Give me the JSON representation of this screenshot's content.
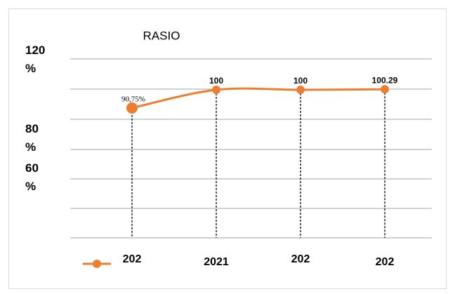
{
  "chart_data": {
    "type": "line",
    "title": "RASIO",
    "categories": [
      "202",
      "2021",
      "202",
      "202"
    ],
    "series": [
      {
        "color": "#ED7D31",
        "values": [
          90.75,
          100,
          100,
          100.29
        ],
        "value_labels": [
          "90,75%",
          "100",
          "100",
          "100.29"
        ]
      }
    ],
    "ylim": [
      25,
      130
    ],
    "yticks": [
      {
        "value": 120,
        "label": "120\n%"
      },
      {
        "value": 80,
        "label": "80\n%"
      },
      {
        "value": 60,
        "label": "60\n%"
      }
    ]
  }
}
